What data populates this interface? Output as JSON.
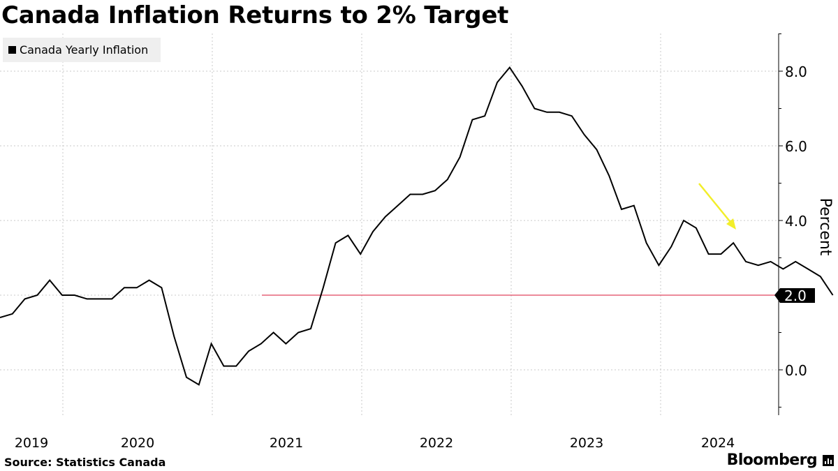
{
  "header": {
    "title": "Canada Inflation Returns to 2% Target"
  },
  "footer": {
    "source": "Source: Statistics Canada",
    "brand": "Bloomberg"
  },
  "chart_data": {
    "type": "line",
    "title": "Canada Inflation Returns to 2% Target",
    "ylabel": "Percent",
    "xlabel": "",
    "ylim": [
      -1.2,
      9.0
    ],
    "yticks": [
      0,
      2,
      4,
      6,
      8
    ],
    "ytick_labels": [
      "0.0",
      "2.0",
      "4.0",
      "6.0",
      "8.0"
    ],
    "xticks": [
      "2019",
      "2020",
      "2021",
      "2022",
      "2023",
      "2024"
    ],
    "grid": true,
    "legend": "top-left",
    "target_value": 2.0,
    "last_value_label": "2.0",
    "colors": {
      "line": "#000000",
      "target": "#e0455e",
      "arrow": "#f2ee2a",
      "legend_bg": "#efefef",
      "grid": "#c8c8c8"
    },
    "series": [
      {
        "name": "Canada Yearly Inflation",
        "x": [
          "2019-01",
          "2019-02",
          "2019-03",
          "2019-04",
          "2019-05",
          "2019-06",
          "2019-07",
          "2019-08",
          "2019-09",
          "2019-10",
          "2019-11",
          "2019-12",
          "2020-01",
          "2020-02",
          "2020-03",
          "2020-04",
          "2020-05",
          "2020-06",
          "2020-07",
          "2020-08",
          "2020-09",
          "2020-10",
          "2020-11",
          "2020-12",
          "2021-01",
          "2021-02",
          "2021-03",
          "2021-04",
          "2021-05",
          "2021-06",
          "2021-07",
          "2021-08",
          "2021-09",
          "2021-10",
          "2021-11",
          "2021-12",
          "2022-01",
          "2022-02",
          "2022-03",
          "2022-04",
          "2022-05",
          "2022-06",
          "2022-07",
          "2022-08",
          "2022-09",
          "2022-10",
          "2022-11",
          "2022-12",
          "2023-01",
          "2023-02",
          "2023-03",
          "2023-04",
          "2023-05",
          "2023-06",
          "2023-07",
          "2023-08",
          "2023-09",
          "2023-10",
          "2023-11",
          "2023-12",
          "2024-01",
          "2024-02",
          "2024-03",
          "2024-04",
          "2024-05",
          "2024-06",
          "2024-07",
          "2024-08"
        ],
        "values": [
          1.4,
          1.5,
          1.9,
          2.0,
          2.4,
          2.0,
          2.0,
          1.9,
          1.9,
          1.9,
          2.2,
          2.2,
          2.4,
          2.2,
          0.9,
          -0.2,
          -0.4,
          0.7,
          0.1,
          0.1,
          0.5,
          0.7,
          1.0,
          0.7,
          1.0,
          1.1,
          2.2,
          3.4,
          3.6,
          3.1,
          3.7,
          4.1,
          4.4,
          4.7,
          4.7,
          4.8,
          5.1,
          5.7,
          6.7,
          6.8,
          7.7,
          8.1,
          7.6,
          7.0,
          6.9,
          6.9,
          6.8,
          6.3,
          5.9,
          5.2,
          4.3,
          4.4,
          3.4,
          2.8,
          3.3,
          4.0,
          3.8,
          3.1,
          3.1,
          3.4,
          2.9,
          2.8,
          2.9,
          2.7,
          2.9,
          2.7,
          2.5,
          2.0
        ]
      }
    ]
  }
}
